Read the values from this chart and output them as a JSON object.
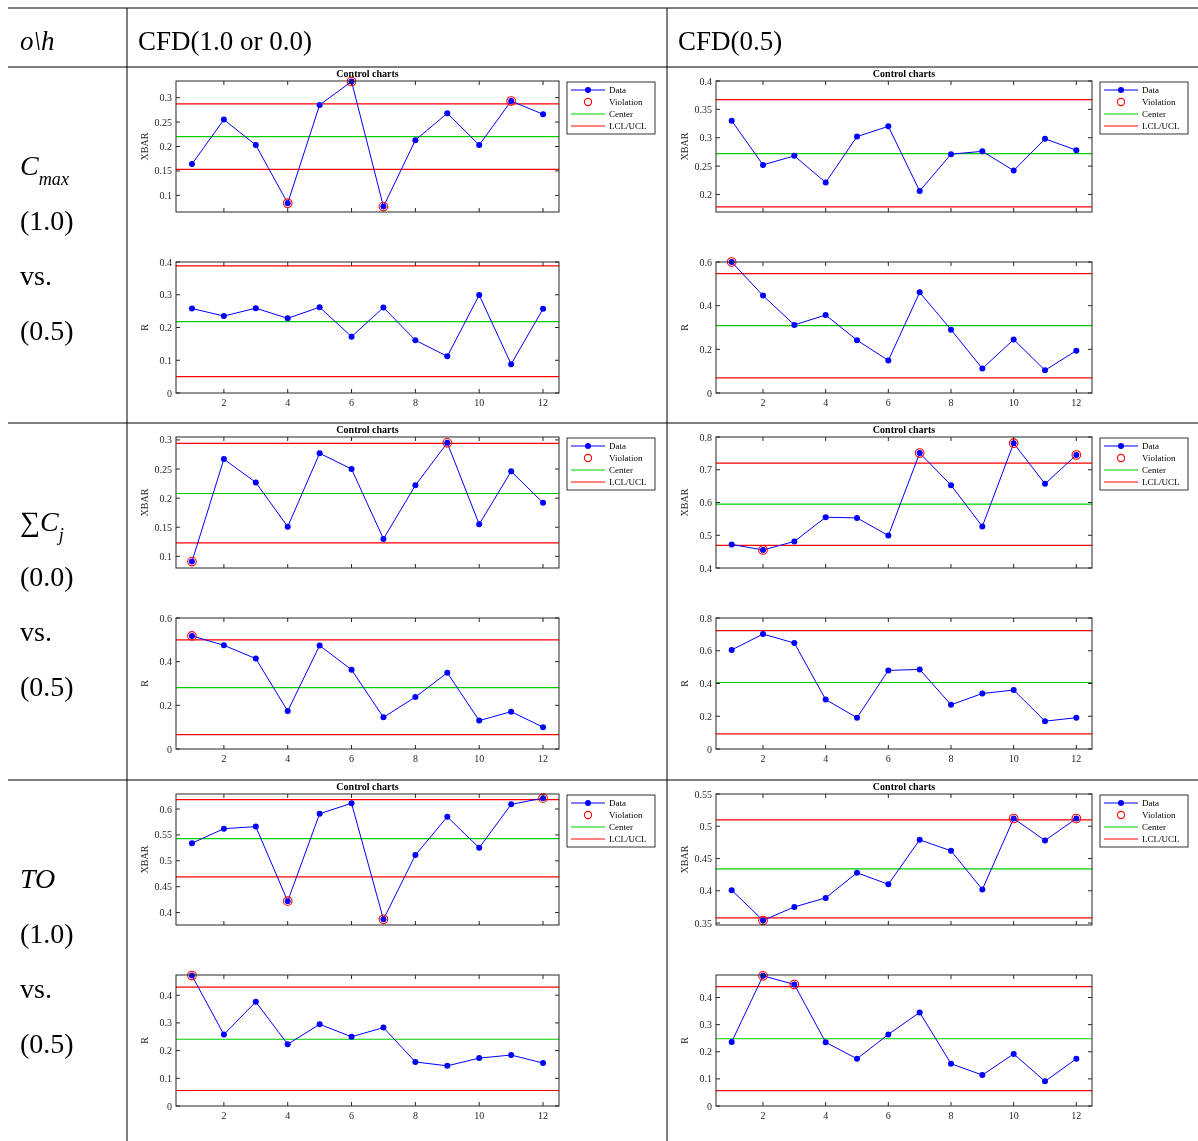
{
  "chart_data": [
    {
      "type": "other",
      "annotations": [
        "o\\h",
        "CFD(1.0 or 0.0)",
        "CFD(0.5)",
        "C$_{max}$",
        "(1.0)",
        "vs.",
        "(0.5)",
        "∑C$_{j}$",
        "(0.0)",
        "vs.",
        "(0.5)",
        "TO",
        "(1.0)",
        "vs.",
        "(0.5)"
      ]
    },
    {
      "type": "line",
      "title": "Control charts",
      "ylabel": "XBAR",
      "x": [
        1,
        2,
        3,
        4,
        5,
        6,
        7,
        8,
        9,
        10,
        11,
        12
      ],
      "xlim": [
        0.5,
        12.5
      ],
      "xticks": [
        2,
        4,
        6,
        8,
        10,
        12
      ],
      "ylim": [
        0.066,
        0.334
      ],
      "yticks": [
        0.1,
        0.15,
        0.2,
        0.25,
        0.3
      ],
      "tick_labels": "y",
      "legend": "right",
      "marker": "circle",
      "series": [
        {
          "name": "Data",
          "type": "line",
          "color": "#0000ff",
          "values": [
            0.164,
            0.255,
            0.203,
            0.084,
            0.285,
            0.333,
            0.077,
            0.213,
            0.268,
            0.203,
            0.293,
            0.266
          ]
        },
        {
          "name": "Violation",
          "type": "scatter",
          "color": "#ff0000",
          "x": [
            4,
            6,
            7,
            11
          ],
          "values": [
            0.084,
            0.333,
            0.077,
            0.293
          ]
        }
      ],
      "ref_lines": [
        {
          "axis": "y",
          "value": 0.22,
          "label": "Center",
          "color": "#00cc00"
        },
        {
          "axis": "y",
          "value": 0.287,
          "label": "LCL/UCL",
          "color": "#ff0000"
        },
        {
          "axis": "y",
          "value": 0.153,
          "color": "#ff0000"
        }
      ]
    },
    {
      "type": "line",
      "title": "Control charts",
      "ylabel": "XBAR",
      "x": [
        1,
        2,
        3,
        4,
        5,
        6,
        7,
        8,
        9,
        10,
        11,
        12
      ],
      "xlim": [
        0.5,
        12.5
      ],
      "xticks": [
        2,
        4,
        6,
        8,
        10,
        12
      ],
      "ylim": [
        0.169,
        0.4
      ],
      "yticks": [
        0.2,
        0.25,
        0.3,
        0.35,
        0.4
      ],
      "tick_labels": "y",
      "legend": "right",
      "marker": "circle",
      "series": [
        {
          "name": "Data",
          "type": "line",
          "color": "#0000ff",
          "values": [
            0.33,
            0.252,
            0.268,
            0.221,
            0.302,
            0.32,
            0.206,
            0.271,
            0.276,
            0.242,
            0.298,
            0.278
          ]
        },
        {
          "name": "Violation",
          "type": "scatter",
          "color": "#ff0000",
          "values": [
            null,
            null,
            null,
            null,
            null,
            null,
            null,
            null,
            null,
            null,
            null,
            null
          ]
        }
      ],
      "ref_lines": [
        {
          "axis": "y",
          "value": 0.272,
          "label": "Center",
          "color": "#00cc00"
        },
        {
          "axis": "y",
          "value": 0.367,
          "label": "LCL/UCL",
          "color": "#ff0000"
        },
        {
          "axis": "y",
          "value": 0.178,
          "color": "#ff0000"
        }
      ]
    },
    {
      "type": "line",
      "ylabel": "R",
      "x": [
        1,
        2,
        3,
        4,
        5,
        6,
        7,
        8,
        9,
        10,
        11,
        12
      ],
      "xlim": [
        0.5,
        12.5
      ],
      "xticks": [
        2,
        4,
        6,
        8,
        10,
        12
      ],
      "ylim": [
        0,
        0.4
      ],
      "yticks": [
        0,
        0.1,
        0.2,
        0.3,
        0.4
      ],
      "marker": "circle",
      "series": [
        {
          "type": "line",
          "color": "#0000ff",
          "values": [
            0.258,
            0.235,
            0.259,
            0.228,
            0.262,
            0.172,
            0.261,
            0.161,
            0.112,
            0.299,
            0.088,
            0.257
          ]
        }
      ],
      "ref_lines": [
        {
          "axis": "y",
          "value": 0.218,
          "color": "#00cc00"
        },
        {
          "axis": "y",
          "value": 0.388,
          "color": "#ff0000"
        },
        {
          "axis": "y",
          "value": 0.05,
          "color": "#ff0000"
        }
      ]
    },
    {
      "type": "line",
      "ylabel": "R",
      "x": [
        1,
        2,
        3,
        4,
        5,
        6,
        7,
        8,
        9,
        10,
        11,
        12
      ],
      "xlim": [
        0.5,
        12.5
      ],
      "xticks": [
        2,
        4,
        6,
        8,
        10,
        12
      ],
      "ylim": [
        0,
        0.6
      ],
      "yticks": [
        0,
        0.2,
        0.4,
        0.6
      ],
      "marker": "circle",
      "series": [
        {
          "type": "line",
          "color": "#0000ff",
          "values": [
            0.6,
            0.446,
            0.312,
            0.357,
            0.242,
            0.149,
            0.461,
            0.29,
            0.112,
            0.245,
            0.104,
            0.194
          ]
        },
        {
          "type": "scatter",
          "color": "#ff0000",
          "x": [
            1
          ],
          "values": [
            0.6
          ]
        }
      ],
      "ref_lines": [
        {
          "axis": "y",
          "value": 0.309,
          "color": "#00cc00"
        },
        {
          "axis": "y",
          "value": 0.547,
          "color": "#ff0000"
        },
        {
          "axis": "y",
          "value": 0.069,
          "color": "#ff0000"
        }
      ]
    },
    {
      "type": "line",
      "title": "Control charts",
      "ylabel": "XBAR",
      "x": [
        1,
        2,
        3,
        4,
        5,
        6,
        7,
        8,
        9,
        10,
        11,
        12
      ],
      "xlim": [
        0.5,
        12.5
      ],
      "xticks": [
        2,
        4,
        6,
        8,
        10,
        12
      ],
      "ylim": [
        0.08,
        0.305
      ],
      "yticks": [
        0.1,
        0.15,
        0.2,
        0.25,
        0.3
      ],
      "tick_labels": "y",
      "legend": "right",
      "marker": "circle",
      "series": [
        {
          "name": "Data",
          "type": "line",
          "color": "#0000ff",
          "values": [
            0.091,
            0.267,
            0.227,
            0.151,
            0.277,
            0.25,
            0.13,
            0.222,
            0.295,
            0.155,
            0.246,
            0.192
          ]
        },
        {
          "name": "Violation",
          "type": "scatter",
          "color": "#ff0000",
          "x": [
            1,
            9
          ],
          "values": [
            0.091,
            0.295
          ]
        }
      ],
      "ref_lines": [
        {
          "axis": "y",
          "value": 0.208,
          "label": "Center",
          "color": "#00cc00"
        },
        {
          "axis": "y",
          "value": 0.294,
          "label": "LCL/UCL",
          "color": "#ff0000"
        },
        {
          "axis": "y",
          "value": 0.123,
          "color": "#ff0000"
        }
      ]
    },
    {
      "type": "line",
      "title": "Control charts",
      "ylabel": "XBAR",
      "x": [
        1,
        2,
        3,
        4,
        5,
        6,
        7,
        8,
        9,
        10,
        11,
        12
      ],
      "xlim": [
        0.5,
        12.5
      ],
      "xticks": [
        2,
        4,
        6,
        8,
        10,
        12
      ],
      "ylim": [
        0.4,
        0.8
      ],
      "yticks": [
        0.4,
        0.5,
        0.6,
        0.7,
        0.8
      ],
      "tick_labels": "y",
      "legend": "right",
      "marker": "circle",
      "series": [
        {
          "name": "Data",
          "type": "line",
          "color": "#0000ff",
          "values": [
            0.472,
            0.455,
            0.481,
            0.555,
            0.553,
            0.499,
            0.751,
            0.653,
            0.527,
            0.781,
            0.657,
            0.745
          ]
        },
        {
          "name": "Violation",
          "type": "scatter",
          "color": "#ff0000",
          "x": [
            2,
            7,
            10,
            12
          ],
          "values": [
            0.455,
            0.751,
            0.781,
            0.745
          ]
        }
      ],
      "ref_lines": [
        {
          "axis": "y",
          "value": 0.595,
          "label": "Center",
          "color": "#00cc00"
        },
        {
          "axis": "y",
          "value": 0.72,
          "label": "LCL/UCL",
          "color": "#ff0000"
        },
        {
          "axis": "y",
          "value": 0.469,
          "color": "#ff0000"
        }
      ]
    },
    {
      "type": "line",
      "ylabel": "R",
      "x": [
        1,
        2,
        3,
        4,
        5,
        6,
        7,
        8,
        9,
        10,
        11,
        12
      ],
      "xlim": [
        0.5,
        12.5
      ],
      "xticks": [
        2,
        4,
        6,
        8,
        10,
        12
      ],
      "ylim": [
        0,
        0.6
      ],
      "yticks": [
        0,
        0.2,
        0.4,
        0.6
      ],
      "marker": "circle",
      "series": [
        {
          "type": "line",
          "color": "#0000ff",
          "values": [
            0.518,
            0.475,
            0.414,
            0.174,
            0.474,
            0.363,
            0.145,
            0.238,
            0.349,
            0.13,
            0.171,
            0.1
          ]
        },
        {
          "type": "scatter",
          "color": "#ff0000",
          "x": [
            1
          ],
          "values": [
            0.518
          ]
        }
      ],
      "ref_lines": [
        {
          "axis": "y",
          "value": 0.281,
          "color": "#00cc00"
        },
        {
          "axis": "y",
          "value": 0.5,
          "color": "#ff0000"
        },
        {
          "axis": "y",
          "value": 0.066,
          "color": "#ff0000"
        }
      ]
    },
    {
      "type": "line",
      "ylabel": "R",
      "x": [
        1,
        2,
        3,
        4,
        5,
        6,
        7,
        8,
        9,
        10,
        11,
        12
      ],
      "xlim": [
        0.5,
        12.5
      ],
      "xticks": [
        2,
        4,
        6,
        8,
        10,
        12
      ],
      "ylim": [
        0,
        0.8
      ],
      "yticks": [
        0,
        0.2,
        0.4,
        0.6,
        0.8
      ],
      "marker": "circle",
      "series": [
        {
          "type": "line",
          "color": "#0000ff",
          "values": [
            0.605,
            0.702,
            0.647,
            0.302,
            0.191,
            0.48,
            0.486,
            0.27,
            0.339,
            0.36,
            0.17,
            0.191
          ]
        }
      ],
      "ref_lines": [
        {
          "axis": "y",
          "value": 0.406,
          "color": "#00cc00"
        },
        {
          "axis": "y",
          "value": 0.723,
          "color": "#ff0000"
        },
        {
          "axis": "y",
          "value": 0.092,
          "color": "#ff0000"
        }
      ]
    },
    {
      "type": "line",
      "title": "Control charts",
      "ylabel": "XBAR",
      "x": [
        1,
        2,
        3,
        4,
        5,
        6,
        7,
        8,
        9,
        10,
        11,
        12
      ],
      "xlim": [
        0.5,
        12.5
      ],
      "xticks": [
        2,
        4,
        6,
        8,
        10,
        12
      ],
      "ylim": [
        0.376,
        0.629
      ],
      "yticks": [
        0.4,
        0.45,
        0.5,
        0.55,
        0.6
      ],
      "tick_labels": "y",
      "legend": "right",
      "marker": "circle",
      "series": [
        {
          "name": "Data",
          "type": "line",
          "color": "#0000ff",
          "values": [
            0.534,
            0.562,
            0.566,
            0.422,
            0.591,
            0.611,
            0.387,
            0.511,
            0.585,
            0.525,
            0.609,
            0.621
          ]
        },
        {
          "name": "Violation",
          "type": "scatter",
          "color": "#ff0000",
          "x": [
            4,
            7,
            12
          ],
          "values": [
            0.422,
            0.387,
            0.621
          ]
        }
      ],
      "ref_lines": [
        {
          "axis": "y",
          "value": 0.543,
          "label": "Center",
          "color": "#00cc00"
        },
        {
          "axis": "y",
          "value": 0.618,
          "label": "LCL/UCL",
          "color": "#ff0000"
        },
        {
          "axis": "y",
          "value": 0.469,
          "color": "#ff0000"
        }
      ]
    },
    {
      "type": "line",
      "title": "Control charts",
      "ylabel": "XBAR",
      "x": [
        1,
        2,
        3,
        4,
        5,
        6,
        7,
        8,
        9,
        10,
        11,
        12
      ],
      "xlim": [
        0.5,
        12.5
      ],
      "xticks": [
        2,
        4,
        6,
        8,
        10,
        12
      ],
      "ylim": [
        0.347,
        0.55
      ],
      "yticks": [
        0.35,
        0.4,
        0.45,
        0.5,
        0.55
      ],
      "tick_labels": "y",
      "legend": "right",
      "marker": "circle",
      "series": [
        {
          "name": "Data",
          "type": "line",
          "color": "#0000ff",
          "values": [
            0.401,
            0.354,
            0.375,
            0.389,
            0.428,
            0.41,
            0.479,
            0.462,
            0.402,
            0.512,
            0.478,
            0.512
          ]
        },
        {
          "name": "Violation",
          "type": "scatter",
          "color": "#ff0000",
          "x": [
            2,
            10,
            12
          ],
          "values": [
            0.354,
            0.512,
            0.512
          ]
        }
      ],
      "ref_lines": [
        {
          "axis": "y",
          "value": 0.434,
          "label": "Center",
          "color": "#00cc00"
        },
        {
          "axis": "y",
          "value": 0.51,
          "label": "LCL/UCL",
          "color": "#ff0000"
        },
        {
          "axis": "y",
          "value": 0.358,
          "color": "#ff0000"
        }
      ]
    },
    {
      "type": "line",
      "ylabel": "R",
      "x": [
        1,
        2,
        3,
        4,
        5,
        6,
        7,
        8,
        9,
        10,
        11,
        12
      ],
      "xlim": [
        0.5,
        12.5
      ],
      "xticks": [
        2,
        4,
        6,
        8,
        10,
        12
      ],
      "ylim": [
        0,
        0.473
      ],
      "yticks": [
        0,
        0.1,
        0.2,
        0.3,
        0.4
      ],
      "marker": "circle",
      "series": [
        {
          "type": "line",
          "color": "#0000ff",
          "values": [
            0.471,
            0.258,
            0.376,
            0.223,
            0.295,
            0.25,
            0.283,
            0.159,
            0.145,
            0.173,
            0.184,
            0.155
          ]
        },
        {
          "type": "scatter",
          "color": "#ff0000",
          "x": [
            1
          ],
          "values": [
            0.471
          ]
        }
      ],
      "ref_lines": [
        {
          "axis": "y",
          "value": 0.241,
          "color": "#00cc00"
        },
        {
          "axis": "y",
          "value": 0.429,
          "color": "#ff0000"
        },
        {
          "axis": "y",
          "value": 0.056,
          "color": "#ff0000"
        }
      ]
    },
    {
      "type": "line",
      "ylabel": "R",
      "x": [
        1,
        2,
        3,
        4,
        5,
        6,
        7,
        8,
        9,
        10,
        11,
        12
      ],
      "xlim": [
        0.5,
        12.5
      ],
      "xticks": [
        2,
        4,
        6,
        8,
        10,
        12
      ],
      "ylim": [
        0,
        0.483
      ],
      "yticks": [
        0,
        0.1,
        0.2,
        0.3,
        0.4
      ],
      "marker": "circle",
      "series": [
        {
          "type": "line",
          "color": "#0000ff",
          "values": [
            0.236,
            0.48,
            0.448,
            0.235,
            0.174,
            0.264,
            0.345,
            0.156,
            0.114,
            0.192,
            0.091,
            0.174
          ]
        },
        {
          "type": "scatter",
          "color": "#ff0000",
          "x": [
            2,
            3
          ],
          "values": [
            0.48,
            0.448
          ]
        }
      ],
      "ref_lines": [
        {
          "axis": "y",
          "value": 0.248,
          "color": "#00cc00"
        },
        {
          "axis": "y",
          "value": 0.44,
          "color": "#ff0000"
        },
        {
          "axis": "y",
          "value": 0.057,
          "color": "#ff0000"
        }
      ]
    }
  ]
}
